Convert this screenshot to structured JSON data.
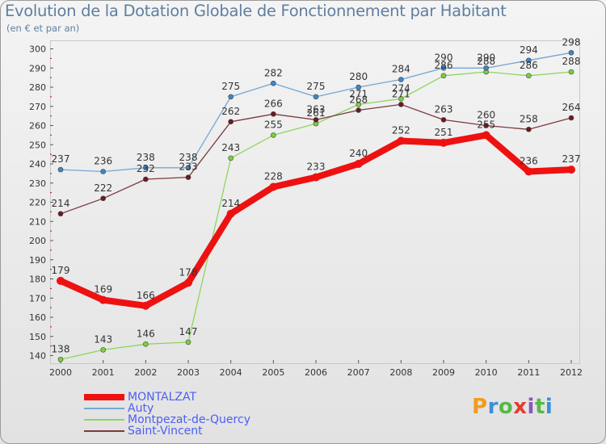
{
  "header": {
    "title": "Evolution de la Dotation Globale de Fonctionnement par Habitant",
    "subtitle": "(en € et par an)"
  },
  "logo": {
    "text": "Proxiti",
    "colors": [
      "#f39b1e",
      "#3b8fd9",
      "#57b947",
      "#e63b2e",
      "#8a56c2",
      "#57b947",
      "#3b8fd9"
    ]
  },
  "colors": {
    "tick": "#333333",
    "grid": "#c9c9c9",
    "axis_marker": "#d40000",
    "label": "#333333"
  },
  "chart_data": {
    "type": "line",
    "title": "Evolution de la Dotation Globale de Fonctionnement par Habitant",
    "subtitle": "(en € et par an)",
    "xlabel": "",
    "ylabel": "",
    "ylim": [
      135,
      300
    ],
    "y_ticks": [
      140,
      150,
      160,
      170,
      180,
      190,
      200,
      210,
      220,
      230,
      240,
      250,
      260,
      270,
      280,
      290,
      300
    ],
    "grid": false,
    "legend": "bottom-left",
    "categories": [
      "2000",
      "2001",
      "2002",
      "2003",
      "2004",
      "2005",
      "2006",
      "2007",
      "2008",
      "2009",
      "2010",
      "2011",
      "2012"
    ],
    "series": [
      {
        "name": "Montpezat-de-Quercy",
        "color": "#8ed65c",
        "marker": "#7ccf3e",
        "width": 1.3,
        "values": [
          138,
          143,
          146,
          147,
          243,
          255,
          261,
          271,
          274,
          286,
          288,
          286,
          288
        ]
      },
      {
        "name": "Saint-Vincent",
        "color": "#7a3b40",
        "marker": "#6b1a1f",
        "width": 1.3,
        "values": [
          214,
          222,
          232,
          233,
          262,
          266,
          263,
          268,
          271,
          263,
          260,
          258,
          264
        ]
      },
      {
        "name": "Auty",
        "color": "#74a6d4",
        "marker": "#3d86c6",
        "width": 1.3,
        "values": [
          237,
          236,
          238,
          238,
          275,
          282,
          275,
          280,
          284,
          290,
          290,
          294,
          298
        ]
      },
      {
        "name": "MONTALZAT",
        "color": "#ee1111",
        "marker": "#ee1111",
        "width": 8,
        "values": [
          179,
          169,
          166,
          178,
          214,
          228,
          233,
          240,
          252,
          251,
          255,
          236,
          237
        ]
      }
    ],
    "data_labels": [
      {
        "series": "Montpezat-de-Quercy",
        "labels": [
          "138",
          "143",
          "146",
          "147",
          "243",
          "255",
          "261",
          "271",
          "274",
          "286",
          "288",
          "286",
          "288"
        ]
      },
      {
        "series": "Saint-Vincent",
        "labels": [
          "214",
          "222",
          "232",
          "233",
          "262",
          "266",
          "263",
          "268",
          "271",
          "263",
          "260",
          "258",
          "264"
        ]
      },
      {
        "series": "Auty",
        "labels": [
          "237",
          "236",
          "238",
          "238",
          "275",
          "282",
          "275",
          "280",
          "284",
          "290",
          "290",
          "294",
          "298"
        ]
      },
      {
        "series": "MONTALZAT",
        "labels": [
          "179",
          "169",
          "166",
          "178",
          "214",
          "228",
          "233",
          "240",
          "252",
          "251",
          "255",
          "236",
          "237"
        ]
      }
    ]
  },
  "legend": {
    "items": [
      {
        "label": "MONTALZAT",
        "color": "#ee1111",
        "thickness": 8
      },
      {
        "label": "Auty",
        "color": "#74a6d4",
        "thickness": 2
      },
      {
        "label": "Montpezat-de-Quercy",
        "color": "#8ed65c",
        "thickness": 2
      },
      {
        "label": "Saint-Vincent",
        "color": "#7a3b40",
        "thickness": 2
      }
    ]
  }
}
